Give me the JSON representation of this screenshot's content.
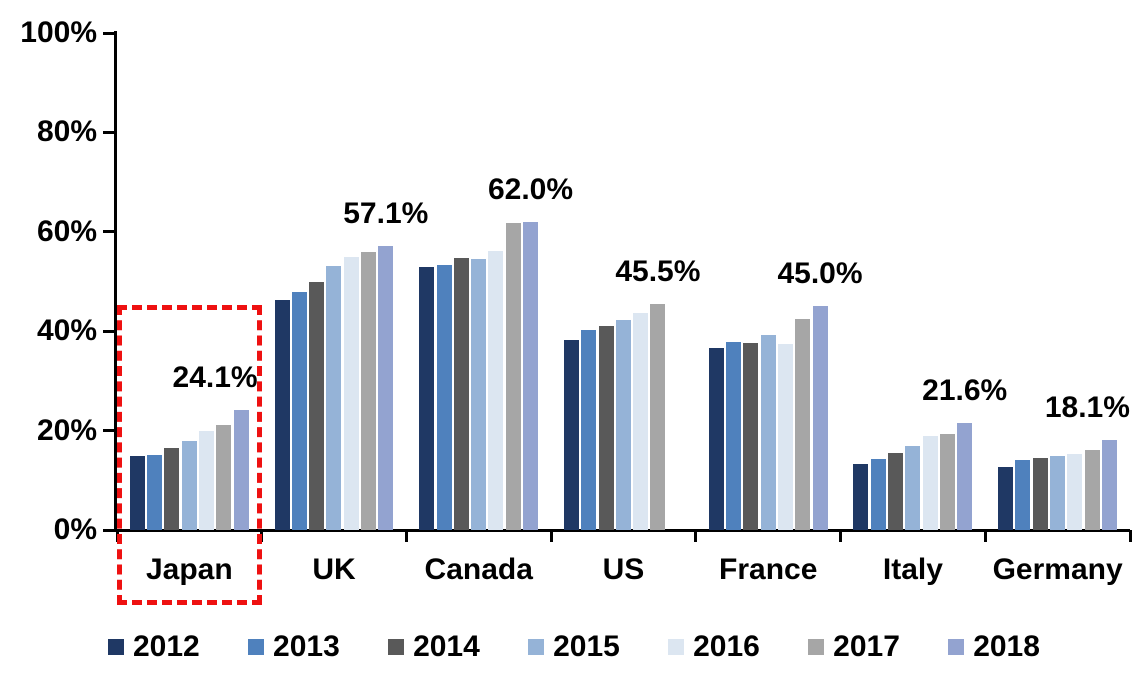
{
  "chart_data": {
    "type": "bar",
    "title": "",
    "xlabel": "",
    "ylabel": "",
    "categories": [
      "Japan",
      "UK",
      "Canada",
      "US",
      "France",
      "Italy",
      "Germany"
    ],
    "series": [
      {
        "name": "2012",
        "color": "#1F3864",
        "values": [
          14.9,
          46.3,
          53.0,
          38.3,
          36.6,
          13.3,
          12.6
        ]
      },
      {
        "name": "2013",
        "color": "#4F81BD",
        "values": [
          15.0,
          47.8,
          53.4,
          40.2,
          37.8,
          14.2,
          14.0
        ]
      },
      {
        "name": "2014",
        "color": "#595959",
        "values": [
          16.5,
          50.0,
          54.8,
          41.0,
          37.7,
          15.5,
          14.5
        ]
      },
      {
        "name": "2015",
        "color": "#95B3D7",
        "values": [
          17.9,
          53.2,
          54.6,
          42.3,
          39.2,
          16.9,
          14.9
        ]
      },
      {
        "name": "2016",
        "color": "#DCE6F1",
        "values": [
          19.9,
          54.9,
          56.1,
          43.6,
          37.4,
          19.0,
          15.4
        ]
      },
      {
        "name": "2017",
        "color": "#A6A6A6",
        "values": [
          21.2,
          55.9,
          61.7,
          45.5,
          42.4,
          19.3,
          16.1
        ]
      },
      {
        "name": "2018",
        "color": "#93A3D0",
        "values": [
          24.1,
          57.1,
          62.0,
          null,
          45.0,
          21.6,
          18.1
        ]
      }
    ],
    "data_labels": [
      "24.1%",
      "57.1%",
      "62.0%",
      "45.5%",
      "45.0%",
      "21.6%",
      "18.1%"
    ],
    "y_axis": {
      "min": 0,
      "max": 100,
      "tick_labels": [
        "0%",
        "20%",
        "40%",
        "60%",
        "80%",
        "100%"
      ],
      "grid": false
    },
    "legend": {
      "position": "bottom",
      "entries": [
        "2012",
        "2013",
        "2014",
        "2015",
        "2016",
        "2017",
        "2018"
      ]
    },
    "annotations": {
      "highlight_box": {
        "category": "Japan",
        "color": "#FF0000",
        "style": "dashed"
      }
    }
  }
}
